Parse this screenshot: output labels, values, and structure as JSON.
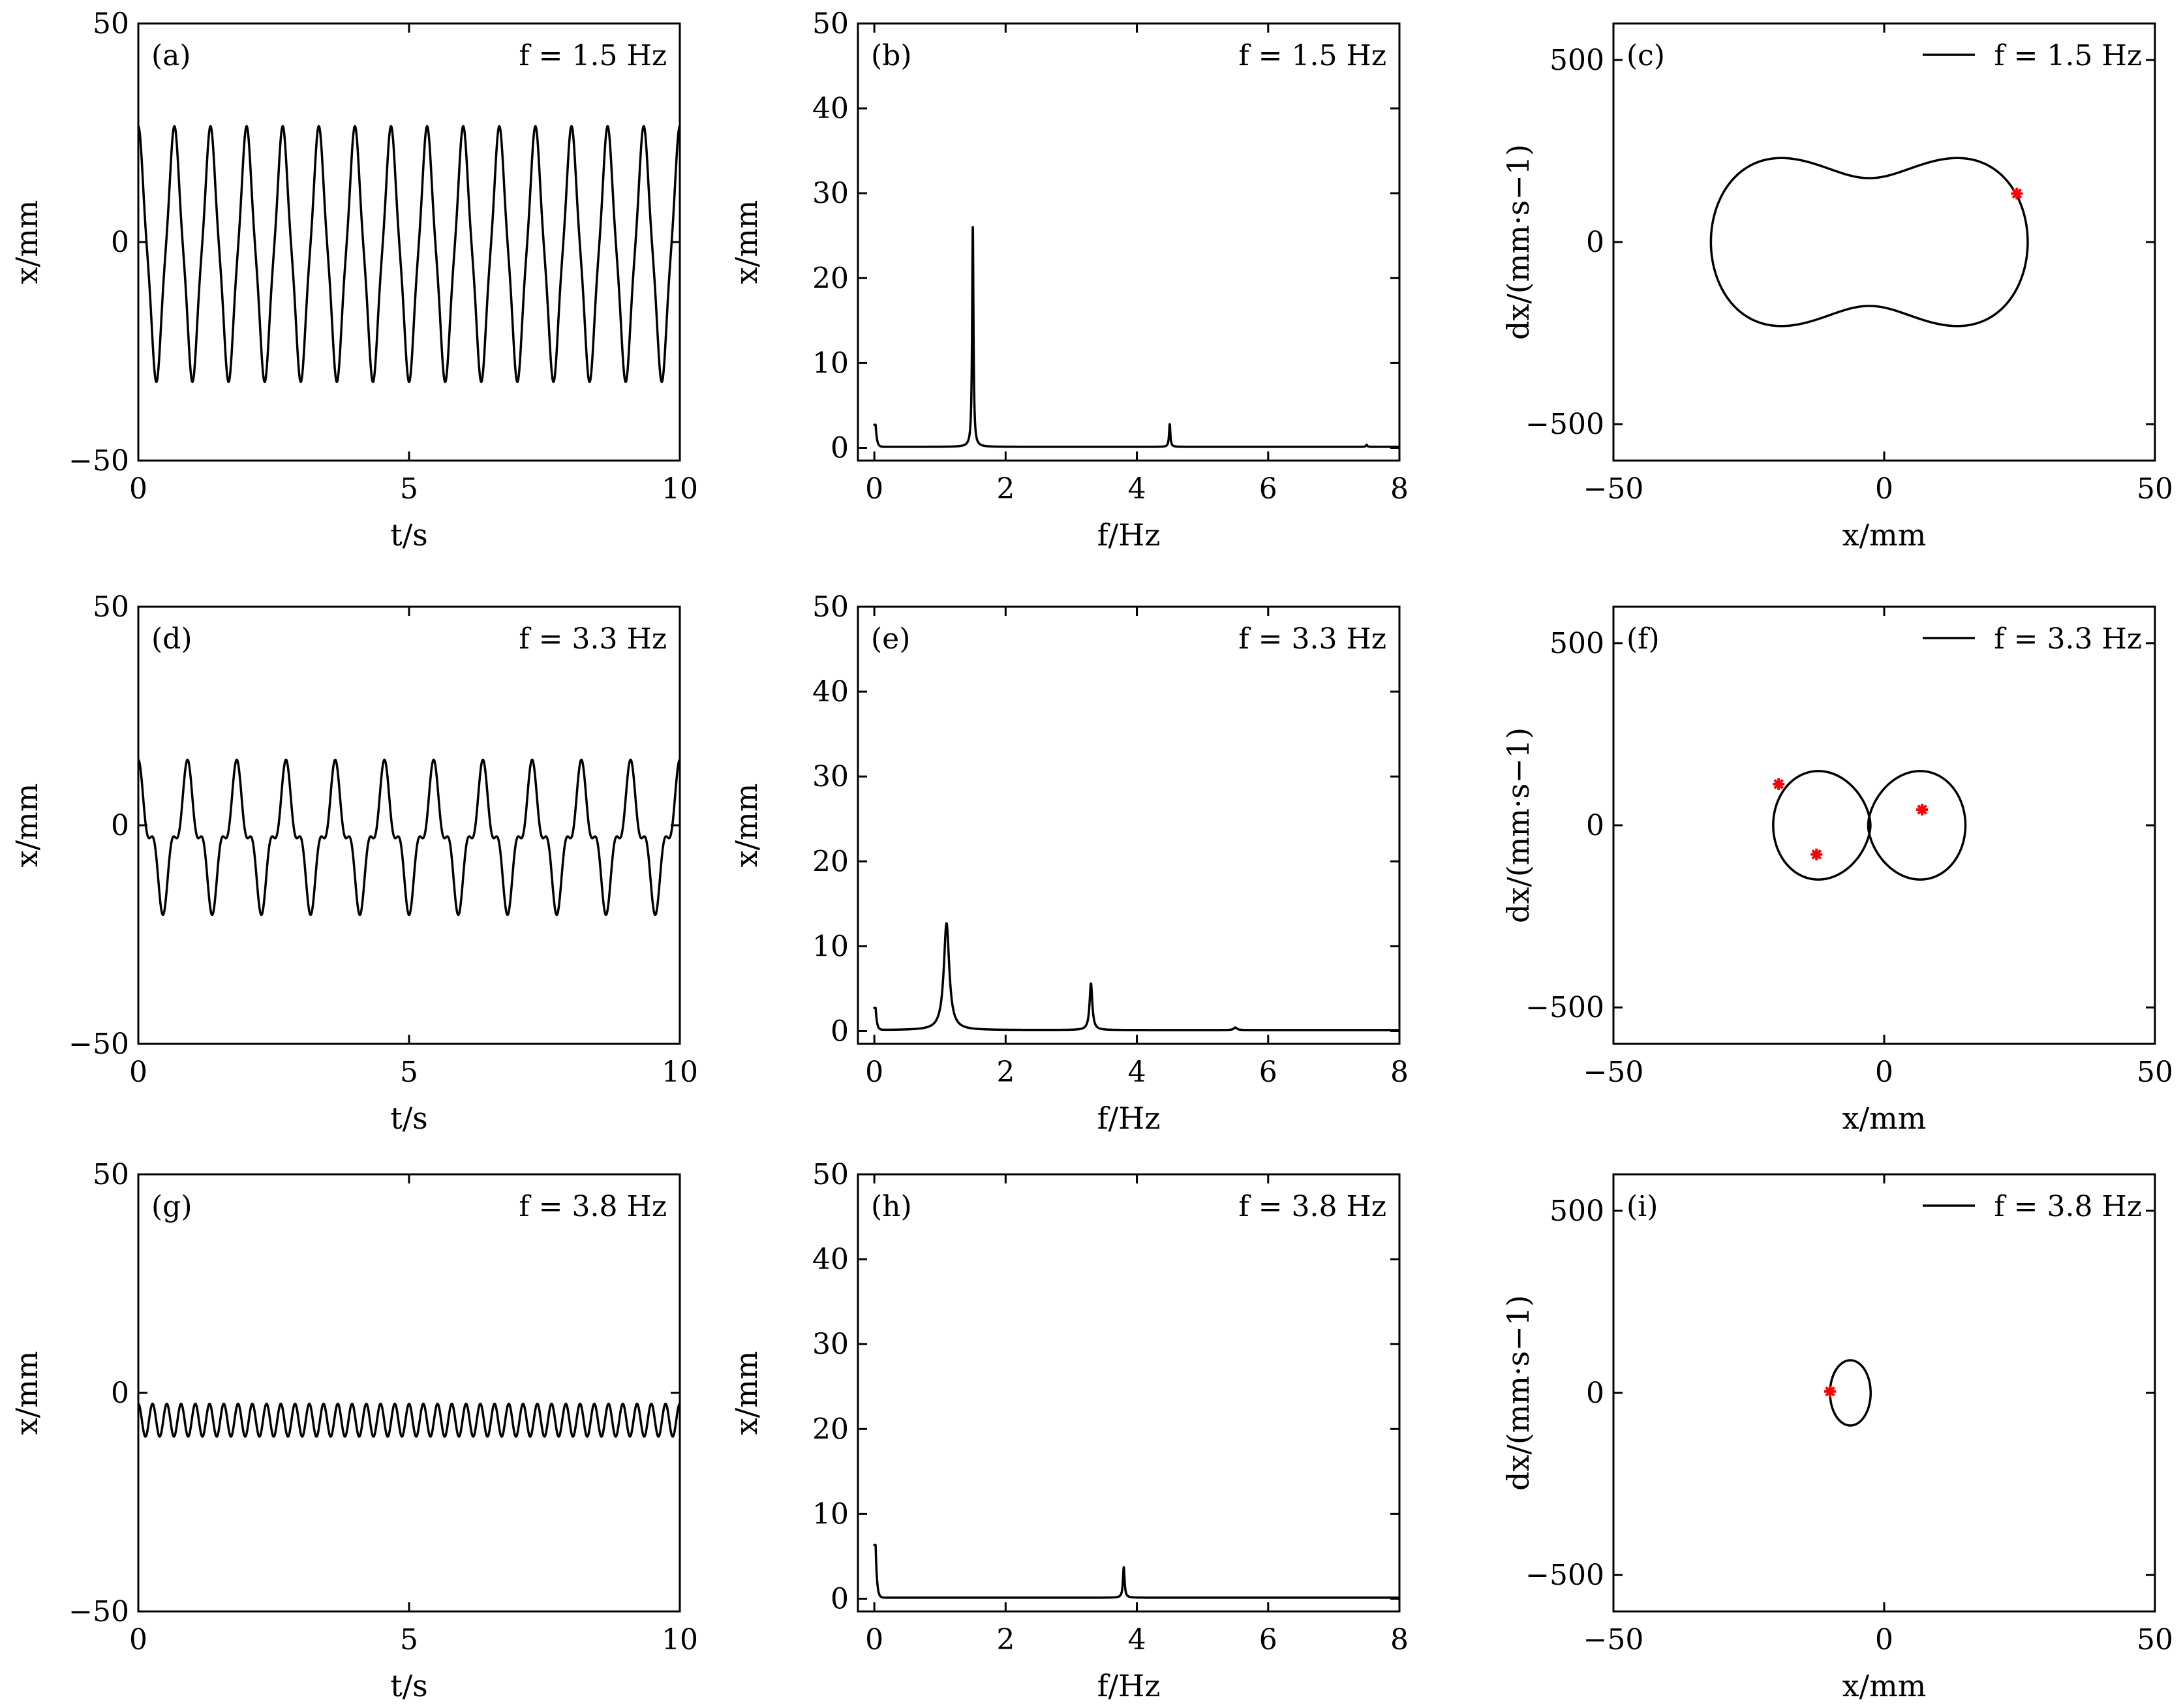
{
  "figure": {
    "trace_color": "#000000",
    "marker_color": "#ff0000"
  },
  "chart_data": [
    {
      "id": "a",
      "type": "line",
      "panel_label": "(a)",
      "annotation": "f = 1.5 Hz",
      "xlabel": "t/s",
      "ylabel": "x/mm",
      "xlim": [
        0,
        10
      ],
      "ylim": [
        -50,
        50
      ],
      "xticks": [
        0,
        5,
        10
      ],
      "yticks": [
        -50,
        0,
        50
      ],
      "grid": false,
      "series": [
        {
          "function": "waveform",
          "frequency_hz": 1.5,
          "max": 26.5,
          "min": -32,
          "harmonic3_ratio": 0.1
        }
      ]
    },
    {
      "id": "b",
      "type": "line",
      "panel_label": "(b)",
      "annotation": "f = 1.5 Hz",
      "xlabel": "f/Hz",
      "ylabel": "x/mm",
      "xlim": [
        -0.25,
        8
      ],
      "ylim": [
        -1.5,
        50
      ],
      "xticks": [
        0,
        2,
        4,
        6,
        8
      ],
      "yticks": [
        0,
        10,
        20,
        30,
        40,
        50
      ],
      "grid": false,
      "series": [
        {
          "function": "spectrum",
          "peaks": [
            {
              "f": 0.02,
              "amp": 2.6,
              "width": 0.02
            },
            {
              "f": 1.5,
              "amp": 26.2,
              "width": 0.012
            },
            {
              "f": 4.5,
              "amp": 2.7,
              "width": 0.012
            },
            {
              "f": 7.5,
              "amp": 0.25,
              "width": 0.012
            }
          ]
        }
      ]
    },
    {
      "id": "c",
      "type": "line",
      "panel_label": "(c)",
      "annotation": "f = 1.5 Hz",
      "xlabel": "x/mm",
      "ylabel": "dx/(mm·s−1)",
      "xlim": [
        -50,
        50
      ],
      "ylim": [
        -600,
        600
      ],
      "xticks": [
        -50,
        0,
        50
      ],
      "yticks": [
        -500,
        0,
        500
      ],
      "grid": false,
      "legend": {
        "position": "top-right",
        "entries": [
          "f = 1.5 Hz"
        ]
      },
      "series": [
        {
          "function": "phase",
          "frequency_hz": 1.5,
          "max": 26.5,
          "min": -32,
          "harmonic3_ratio": 0.1
        }
      ],
      "markers": [
        [
          24.5,
          133
        ]
      ]
    },
    {
      "id": "d",
      "type": "line",
      "panel_label": "(d)",
      "annotation": "f = 3.3 Hz",
      "xlabel": "t/s",
      "ylabel": "x/mm",
      "xlim": [
        0,
        10
      ],
      "ylim": [
        -50,
        50
      ],
      "xticks": [
        0,
        5,
        10
      ],
      "yticks": [
        -50,
        0,
        50
      ],
      "grid": false,
      "series": [
        {
          "function": "waveform",
          "frequency_hz": 1.1,
          "max": 15,
          "min": -20.5,
          "harmonic3_ratio": 0.38
        }
      ]
    },
    {
      "id": "e",
      "type": "line",
      "panel_label": "(e)",
      "annotation": "f = 3.3 Hz",
      "xlabel": "f/Hz",
      "ylabel": "x/mm",
      "xlim": [
        -0.25,
        8
      ],
      "ylim": [
        -1.5,
        50
      ],
      "xticks": [
        0,
        2,
        4,
        6,
        8
      ],
      "yticks": [
        0,
        10,
        20,
        30,
        40,
        50
      ],
      "grid": false,
      "series": [
        {
          "function": "spectrum",
          "peaks": [
            {
              "f": 0.02,
              "amp": 2.6,
              "width": 0.02
            },
            {
              "f": 1.1,
              "amp": 12.6,
              "width": 0.05
            },
            {
              "f": 3.3,
              "amp": 5.5,
              "width": 0.025
            },
            {
              "f": 5.5,
              "amp": 0.3,
              "width": 0.03
            }
          ]
        }
      ]
    },
    {
      "id": "f",
      "type": "line",
      "panel_label": "(f)",
      "annotation": "f = 3.3 Hz",
      "xlabel": "x/mm",
      "ylabel": "dx/(mm·s−1)",
      "xlim": [
        -50,
        50
      ],
      "ylim": [
        -600,
        600
      ],
      "xticks": [
        -50,
        0,
        50
      ],
      "yticks": [
        -500,
        0,
        500
      ],
      "grid": false,
      "legend": {
        "position": "top-right",
        "entries": [
          "f = 3.3 Hz"
        ]
      },
      "series": [
        {
          "function": "phase",
          "frequency_hz": 1.1,
          "max": 15,
          "min": -20.5,
          "harmonic3_ratio": 0.38
        }
      ],
      "markers": [
        [
          -19.5,
          113
        ],
        [
          7,
          43
        ],
        [
          -12.5,
          -80
        ]
      ]
    },
    {
      "id": "g",
      "type": "line",
      "panel_label": "(g)",
      "annotation": "f = 3.8 Hz",
      "xlabel": "t/s",
      "ylabel": "x/mm",
      "xlim": [
        0,
        10
      ],
      "ylim": [
        -50,
        50
      ],
      "xticks": [
        0,
        5,
        10
      ],
      "yticks": [
        -50,
        0,
        50
      ],
      "grid": false,
      "series": [
        {
          "function": "waveform",
          "frequency_hz": 3.8,
          "max": -2.5,
          "min": -10,
          "harmonic3_ratio": 0
        }
      ]
    },
    {
      "id": "h",
      "type": "line",
      "panel_label": "(h)",
      "annotation": "f = 3.8 Hz",
      "xlabel": "f/Hz",
      "ylabel": "x/mm",
      "xlim": [
        -0.25,
        8
      ],
      "ylim": [
        -1.5,
        50
      ],
      "xticks": [
        0,
        2,
        4,
        6,
        8
      ],
      "yticks": [
        0,
        10,
        20,
        30,
        40,
        50
      ],
      "grid": false,
      "series": [
        {
          "function": "spectrum",
          "peaks": [
            {
              "f": 0.02,
              "amp": 6.2,
              "width": 0.02
            },
            {
              "f": 3.8,
              "amp": 3.6,
              "width": 0.015
            }
          ]
        }
      ]
    },
    {
      "id": "i",
      "type": "line",
      "panel_label": "(i)",
      "annotation": "f = 3.8 Hz",
      "xlabel": "x/mm",
      "ylabel": "dx/(mm·s−1)",
      "xlim": [
        -50,
        50
      ],
      "ylim": [
        -600,
        600
      ],
      "xticks": [
        -50,
        0,
        50
      ],
      "yticks": [
        -500,
        0,
        500
      ],
      "grid": false,
      "legend": {
        "position": "top-right",
        "entries": [
          "f = 3.8 Hz"
        ]
      },
      "series": [
        {
          "function": "phase",
          "frequency_hz": 3.8,
          "max": -2.5,
          "min": -10,
          "harmonic3_ratio": 0
        }
      ],
      "markers": [
        [
          -10,
          4
        ]
      ]
    }
  ]
}
